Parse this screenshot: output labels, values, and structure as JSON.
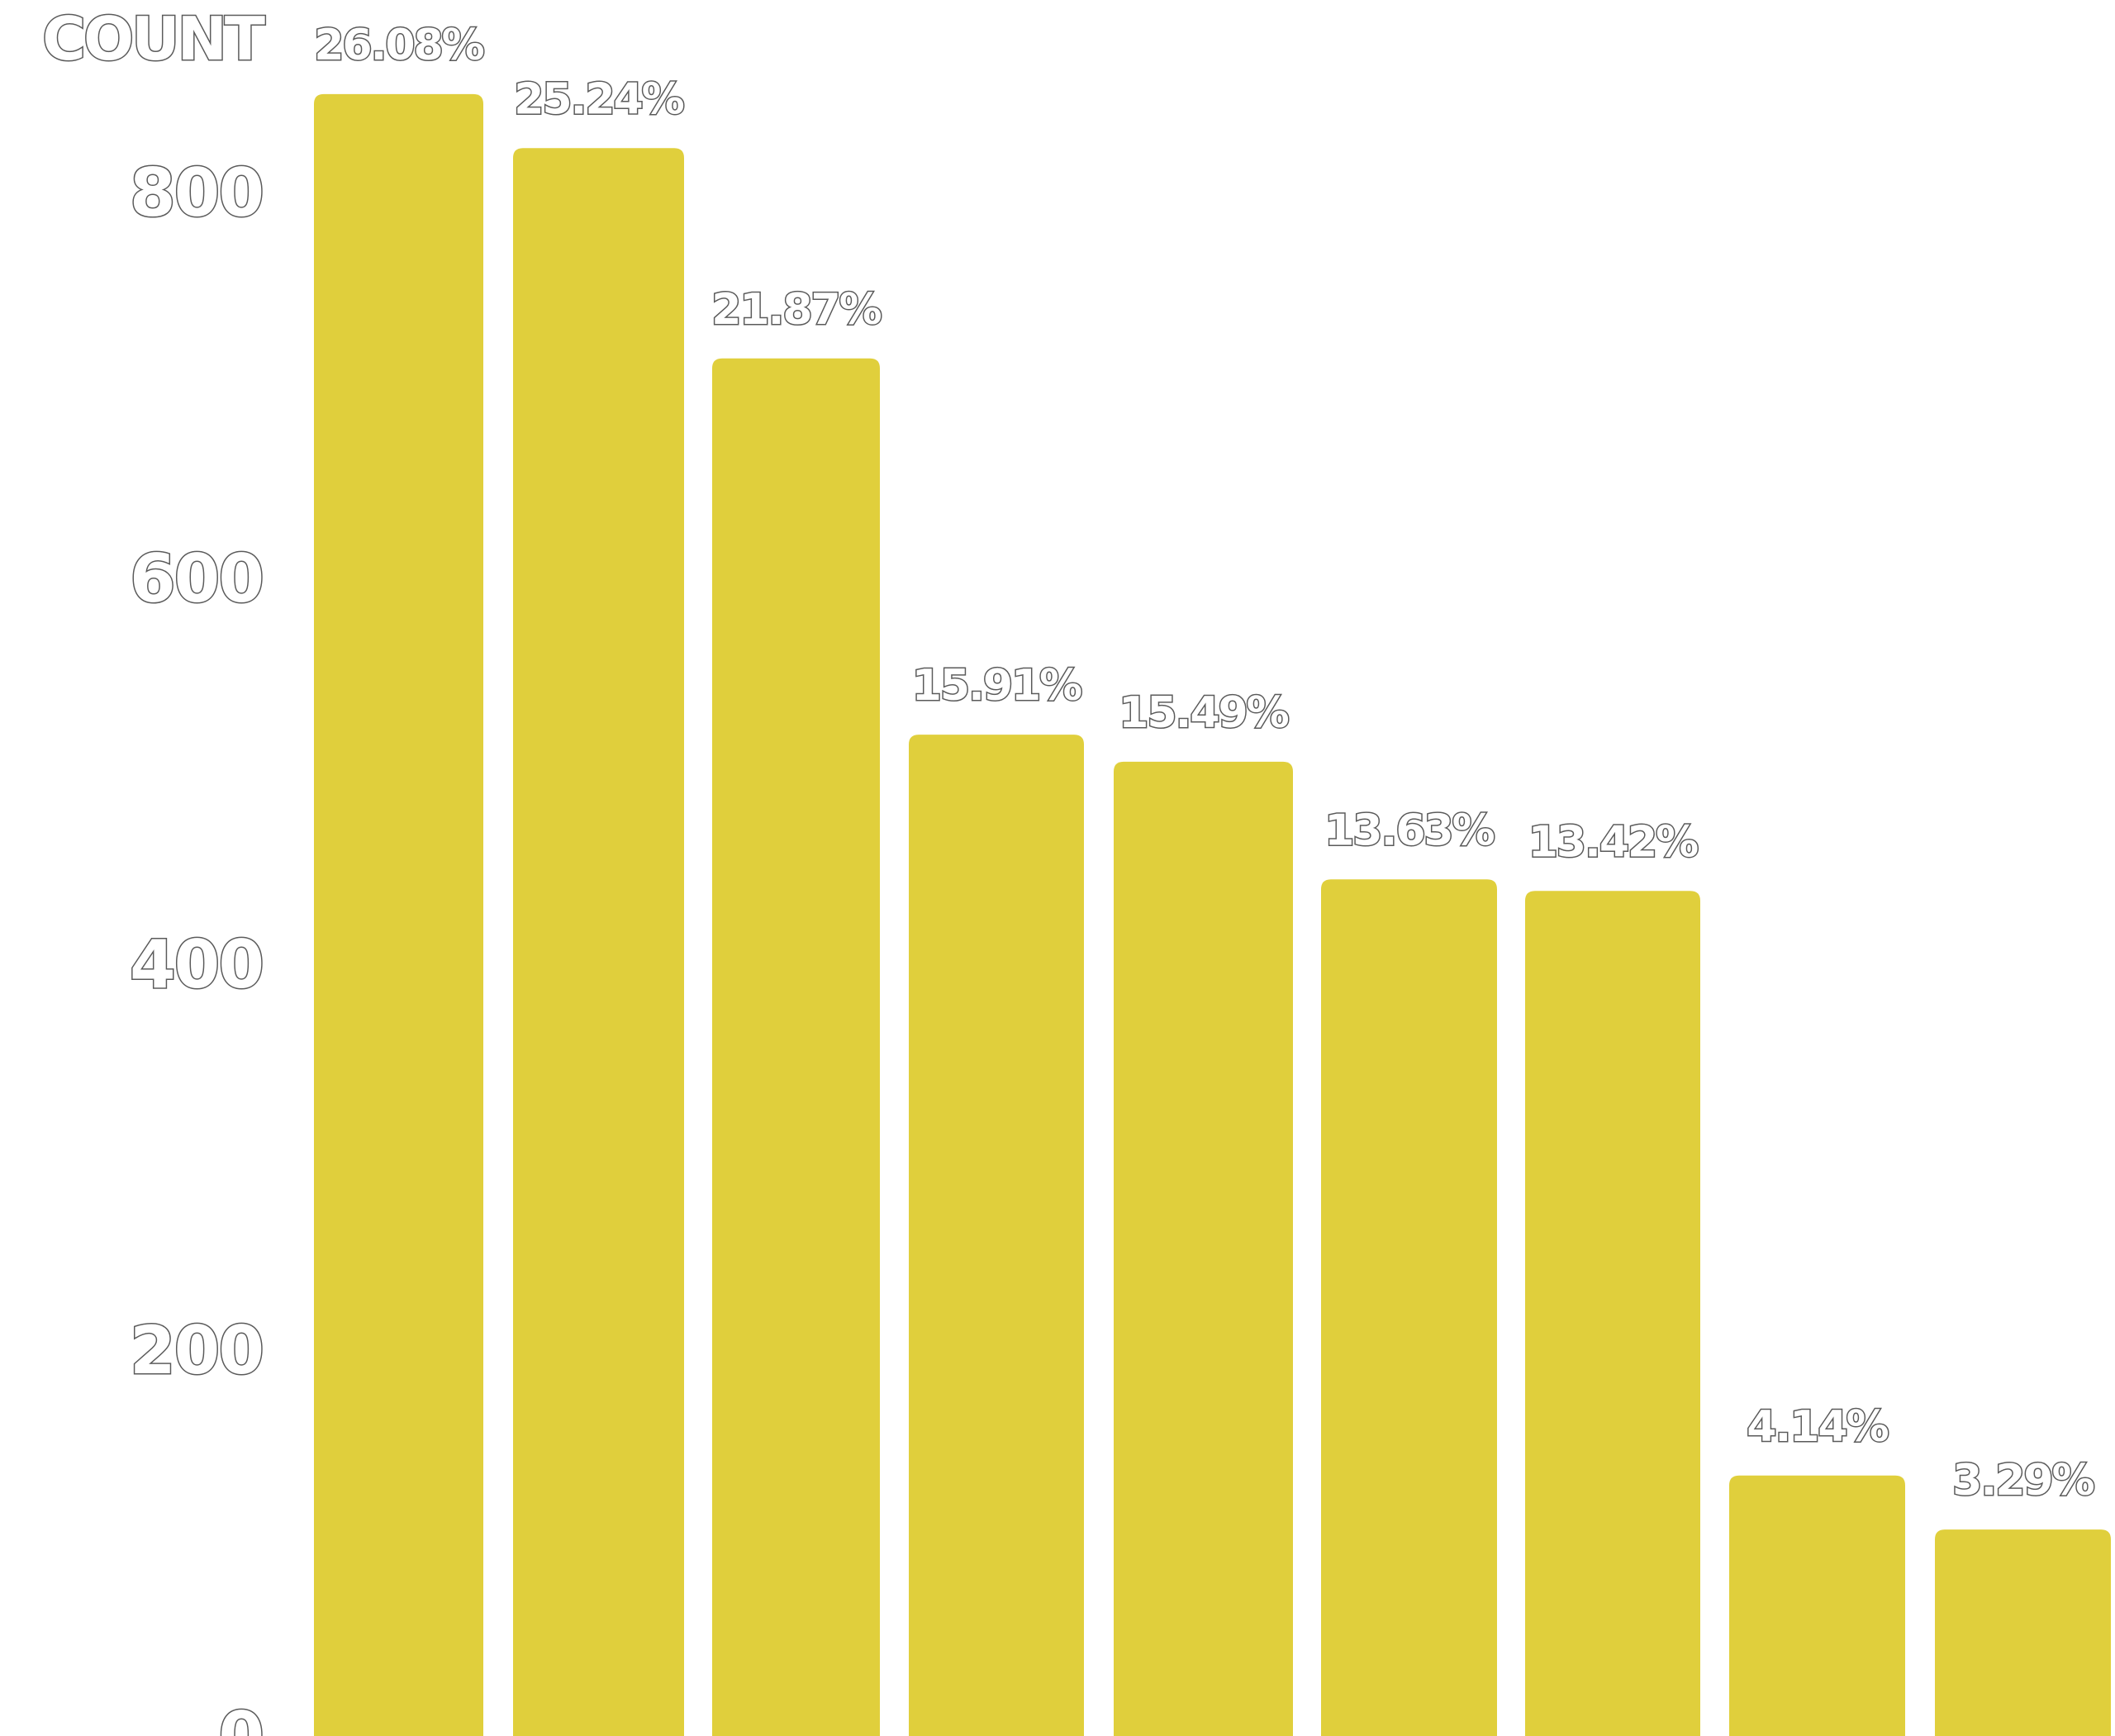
{
  "chart_data": {
    "type": "bar",
    "title": "",
    "xlabel": "",
    "ylabel": "COUNT",
    "ylim": [
      0,
      900
    ],
    "yticks": [
      0,
      200,
      400,
      600,
      800
    ],
    "categories": [],
    "values": [
      851,
      823,
      714,
      519,
      505,
      444,
      438,
      135,
      107
    ],
    "labels": [
      "26.08%",
      "25.24%",
      "21.87%",
      "15.91%",
      "15.49%",
      "13.63%",
      "13.42%",
      "4.14%",
      "3.29%"
    ],
    "grid": false,
    "legend": "none",
    "colors": {
      "bar": "#E0CF3C",
      "text_fill": "#FFFFFF",
      "text_outline": "#5A5A5A",
      "background": "#FFFFFF"
    }
  }
}
